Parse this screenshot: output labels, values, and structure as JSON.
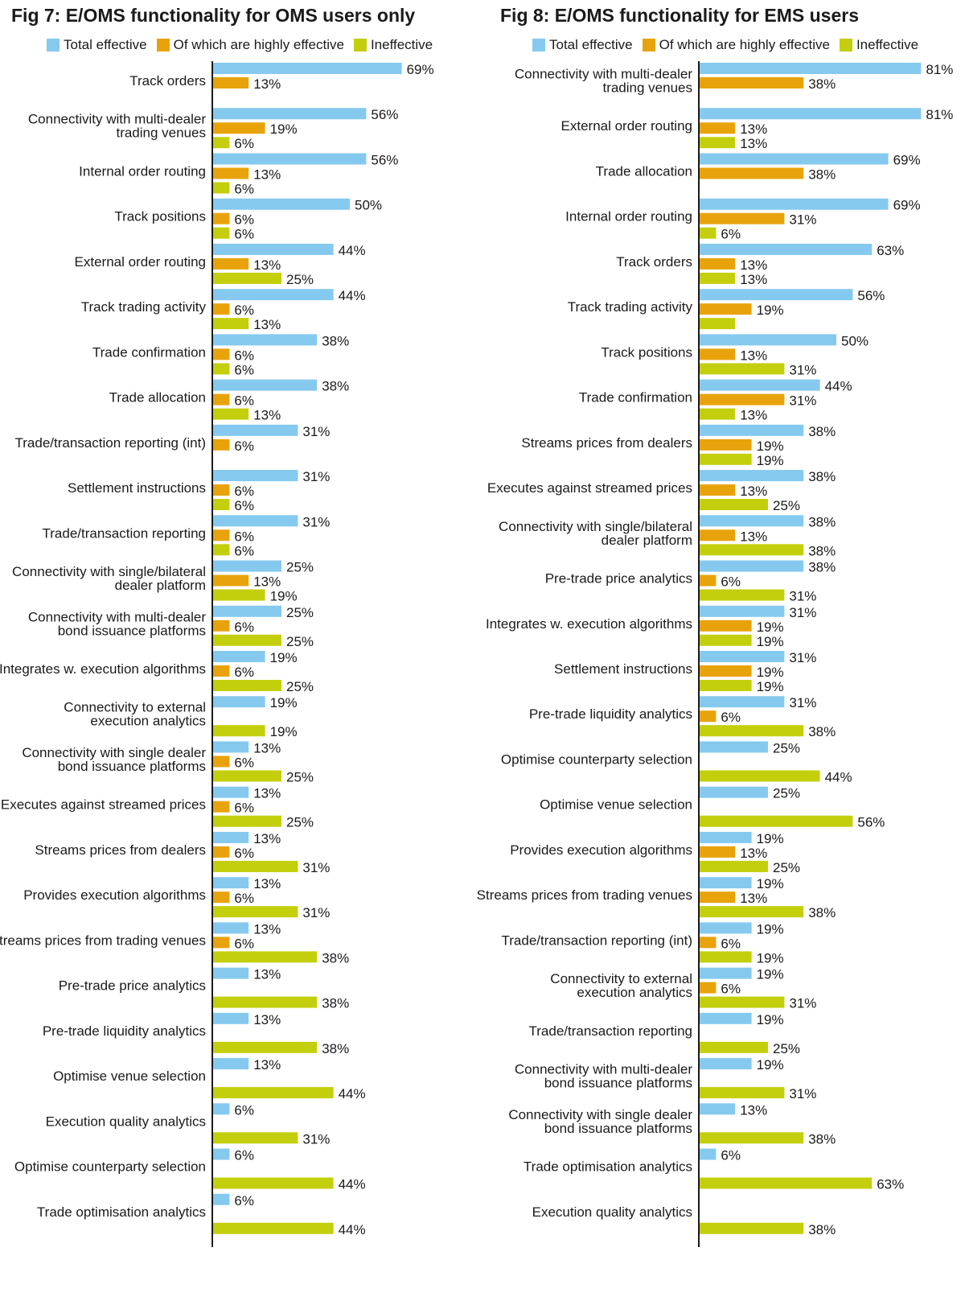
{
  "colors": {
    "total_effective": "#85c9ef",
    "highly_effective": "#e8a30c",
    "ineffective": "#c3cf0d",
    "axis": "#1a1a1a",
    "text": "#1a1a1a"
  },
  "chart_data": [
    {
      "type": "bar",
      "orientation": "horizontal",
      "title": "Fig 7: E/OMS functionality for OMS users only",
      "legend": {
        "placement": "top",
        "items": [
          "Total effective",
          "Of which are highly effective",
          "Ineffective"
        ]
      },
      "value_suffix": "%",
      "grid": false,
      "categories": [
        "Track orders",
        "Connectivity with multi-dealer trading venues",
        "Internal order routing",
        "Track positions",
        "External order routing",
        "Track trading activity",
        "Trade confirmation",
        "Trade allocation",
        "Trade/transaction reporting (int)",
        "Settlement instructions",
        "Trade/transaction reporting",
        "Connectivity with single/bilateral dealer platform",
        "Connectivity with multi-dealer bond issuance platforms",
        "Integrates w. execution algorithms",
        "Connectivity to external execution analytics",
        "Connectivity with single dealer bond issuance platforms",
        "Executes against streamed prices",
        "Streams prices from dealers",
        "Provides execution algorithms",
        "Streams prices from trading venues",
        "Pre-trade price analytics",
        "Pre-trade liquidity analytics",
        "Optimise venue selection",
        "Execution quality analytics",
        "Optimise counterparty selection",
        "Trade optimisation analytics"
      ],
      "category_lines": [
        [
          "Track orders"
        ],
        [
          "Connectivity with multi-dealer",
          "trading venues"
        ],
        [
          "Internal order routing"
        ],
        [
          "Track positions"
        ],
        [
          "External order routing"
        ],
        [
          "Track trading activity"
        ],
        [
          "Trade confirmation"
        ],
        [
          "Trade allocation"
        ],
        [
          "Trade/transaction reporting (int)"
        ],
        [
          "Settlement instructions"
        ],
        [
          "Trade/transaction reporting"
        ],
        [
          "Connectivity with single/bilateral",
          "dealer platform"
        ],
        [
          "Connectivity with multi-dealer",
          "bond issuance platforms"
        ],
        [
          "Integrates w. execution algorithms"
        ],
        [
          "Connectivity to external",
          "execution analytics"
        ],
        [
          "Connectivity with single dealer",
          "bond issuance platforms"
        ],
        [
          "Executes against streamed prices"
        ],
        [
          "Streams prices from dealers"
        ],
        [
          "Provides execution algorithms"
        ],
        [
          "Streams prices from trading venues"
        ],
        [
          "Pre-trade price analytics"
        ],
        [
          "Pre-trade liquidity analytics"
        ],
        [
          "Optimise venue selection"
        ],
        [
          "Execution quality analytics"
        ],
        [
          "Optimise counterparty selection"
        ],
        [
          "Trade optimisation analytics"
        ]
      ],
      "series": [
        {
          "name": "Total effective",
          "color_key": "total_effective",
          "values": [
            69,
            56,
            56,
            50,
            44,
            44,
            38,
            38,
            31,
            31,
            31,
            25,
            25,
            19,
            19,
            13,
            13,
            13,
            13,
            13,
            13,
            13,
            13,
            6,
            6,
            6
          ]
        },
        {
          "name": "Of which are highly effective",
          "color_key": "highly_effective",
          "values": [
            13,
            19,
            13,
            6,
            13,
            6,
            6,
            6,
            6,
            6,
            6,
            13,
            6,
            6,
            null,
            6,
            6,
            6,
            6,
            6,
            null,
            null,
            null,
            null,
            null,
            null
          ]
        },
        {
          "name": "Ineffective",
          "color_key": "ineffective",
          "values": [
            null,
            6,
            6,
            6,
            25,
            13,
            6,
            13,
            null,
            6,
            6,
            19,
            25,
            25,
            19,
            25,
            25,
            31,
            31,
            38,
            38,
            38,
            44,
            31,
            44,
            44
          ]
        }
      ],
      "xlim": [
        0,
        100
      ]
    },
    {
      "type": "bar",
      "orientation": "horizontal",
      "title": "Fig 8: E/OMS functionality for EMS users",
      "legend": {
        "placement": "top",
        "items": [
          "Total effective",
          "Of which are highly effective",
          "Ineffective"
        ]
      },
      "value_suffix": "%",
      "grid": false,
      "categories": [
        "Connectivity with multi-dealer trading venues",
        "External order routing",
        "Trade allocation",
        "Internal order routing",
        "Track orders",
        "Track trading activity",
        "Track positions",
        "Trade confirmation",
        "Streams prices from dealers",
        "Executes against streamed prices",
        "Connectivity with single/bilateral dealer platform",
        "Pre-trade price analytics",
        "Integrates w. execution algorithms",
        "Settlement instructions",
        "Pre-trade liquidity analytics",
        "Optimise counterparty selection",
        "Optimise venue selection",
        "Provides execution algorithms",
        "Streams prices from trading venues",
        "Trade/transaction reporting (int)",
        "Connectivity to external execution analytics",
        "Trade/transaction reporting",
        "Connectivity with multi-dealer bond issuance platforms",
        "Connectivity with single dealer bond issuance platforms",
        "Trade optimisation analytics",
        "Execution quality analytics"
      ],
      "category_lines": [
        [
          "Connectivity with multi-dealer",
          "trading venues"
        ],
        [
          "External order routing"
        ],
        [
          "Trade allocation"
        ],
        [
          "Internal order routing"
        ],
        [
          "Track orders"
        ],
        [
          "Track trading activity"
        ],
        [
          "Track positions"
        ],
        [
          "Trade confirmation"
        ],
        [
          "Streams prices from dealers"
        ],
        [
          "Executes against streamed prices"
        ],
        [
          "Connectivity with single/bilateral",
          "dealer platform"
        ],
        [
          "Pre-trade price analytics"
        ],
        [
          "Integrates w. execution algorithms"
        ],
        [
          "Settlement instructions"
        ],
        [
          "Pre-trade liquidity analytics"
        ],
        [
          "Optimise counterparty selection"
        ],
        [
          "Optimise venue selection"
        ],
        [
          "Provides execution algorithms"
        ],
        [
          "Streams prices from trading venues"
        ],
        [
          "Trade/transaction reporting (int)"
        ],
        [
          "Connectivity to external",
          "execution analytics"
        ],
        [
          "Trade/transaction reporting"
        ],
        [
          "Connectivity with multi-dealer",
          "bond issuance platforms"
        ],
        [
          "Connectivity with single dealer",
          "bond issuance platforms"
        ],
        [
          "Trade optimisation analytics"
        ],
        [
          "Execution quality analytics"
        ]
      ],
      "series": [
        {
          "name": "Total effective",
          "color_key": "total_effective",
          "values": [
            81,
            81,
            69,
            69,
            63,
            56,
            50,
            44,
            38,
            38,
            38,
            38,
            31,
            31,
            31,
            25,
            25,
            19,
            19,
            19,
            19,
            19,
            19,
            13,
            6,
            null
          ]
        },
        {
          "name": "Of which are highly effective",
          "color_key": "highly_effective",
          "values": [
            38,
            13,
            38,
            31,
            13,
            19,
            13,
            31,
            19,
            13,
            13,
            6,
            19,
            19,
            6,
            null,
            null,
            13,
            13,
            6,
            6,
            null,
            null,
            null,
            null,
            null
          ]
        },
        {
          "name": "Ineffective",
          "color_key": "ineffective",
          "values": [
            null,
            13,
            null,
            6,
            13,
            13,
            31,
            13,
            19,
            25,
            38,
            31,
            19,
            19,
            38,
            44,
            56,
            25,
            38,
            19,
            31,
            25,
            31,
            38,
            63,
            38
          ]
        }
      ],
      "value_labels_hidden": [
        [
          5,
          2
        ]
      ],
      "xlim": [
        0,
        100
      ]
    }
  ]
}
